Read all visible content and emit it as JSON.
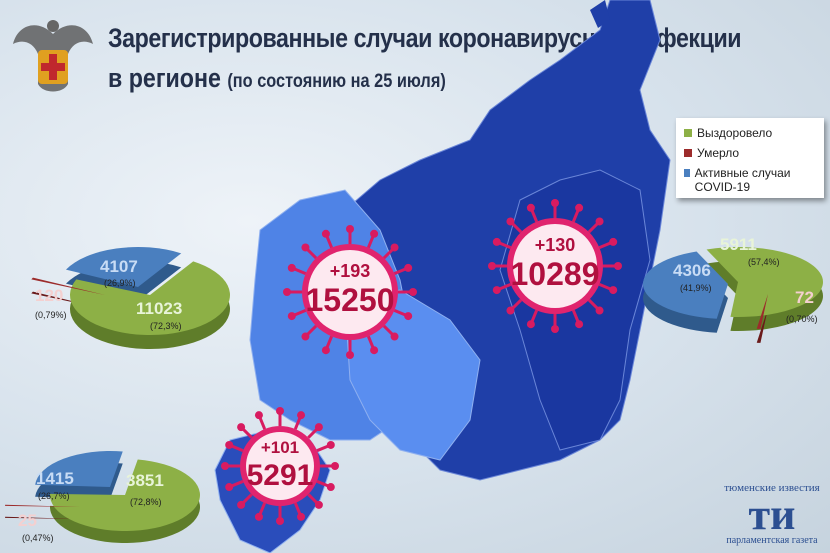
{
  "header": {
    "title_line1": "Зарегистрированные случаи коронавирусной инфекции",
    "title_line2": "в регионе",
    "subtitle": "(по состоянию на 25 июля)"
  },
  "legend": {
    "items": [
      {
        "label": "Выздоровело",
        "color": "#8db046"
      },
      {
        "label": "Умерло",
        "color": "#9c2b2b"
      },
      {
        "label": "Активные случаи COVID-19",
        "color": "#4a7fbf"
      }
    ]
  },
  "regions": [
    {
      "total": "15250",
      "delta": "+193"
    },
    {
      "total": "10289",
      "delta": "+130"
    },
    {
      "total": "5291",
      "delta": "+101"
    }
  ],
  "chart_data": [
    {
      "type": "pie",
      "slices": [
        {
          "label": "Выздоровело",
          "value": 11023,
          "value_text": "11023",
          "pct": "(72,3%)"
        },
        {
          "label": "Умерло",
          "value": 120,
          "value_text": "120",
          "pct": "(0,79%)"
        },
        {
          "label": "Активные случаи COVID-19",
          "value": 4107,
          "value_text": "4107",
          "pct": "(26,9%)"
        }
      ]
    },
    {
      "type": "pie",
      "slices": [
        {
          "label": "Выздоровело",
          "value": 3851,
          "value_text": "3851",
          "pct": "(72,8%)"
        },
        {
          "label": "Умерло",
          "value": 25,
          "value_text": "25",
          "pct": "(0,47%)"
        },
        {
          "label": "Активные случаи COVID-19",
          "value": 1415,
          "value_text": "1415",
          "pct": "(26,7%)"
        }
      ]
    },
    {
      "type": "pie",
      "slices": [
        {
          "label": "Выздоровело",
          "value": 5911,
          "value_text": "5911",
          "pct": "(57,4%)"
        },
        {
          "label": "Умерло",
          "value": 72,
          "value_text": "72",
          "pct": "(0,70%)"
        },
        {
          "label": "Активные случаи COVID-19",
          "value": 4306,
          "value_text": "4306",
          "pct": "(41,9%)"
        }
      ]
    }
  ],
  "logo": {
    "top": "тюменские известия",
    "mark": "ти",
    "bottom": "парламентская газета"
  }
}
